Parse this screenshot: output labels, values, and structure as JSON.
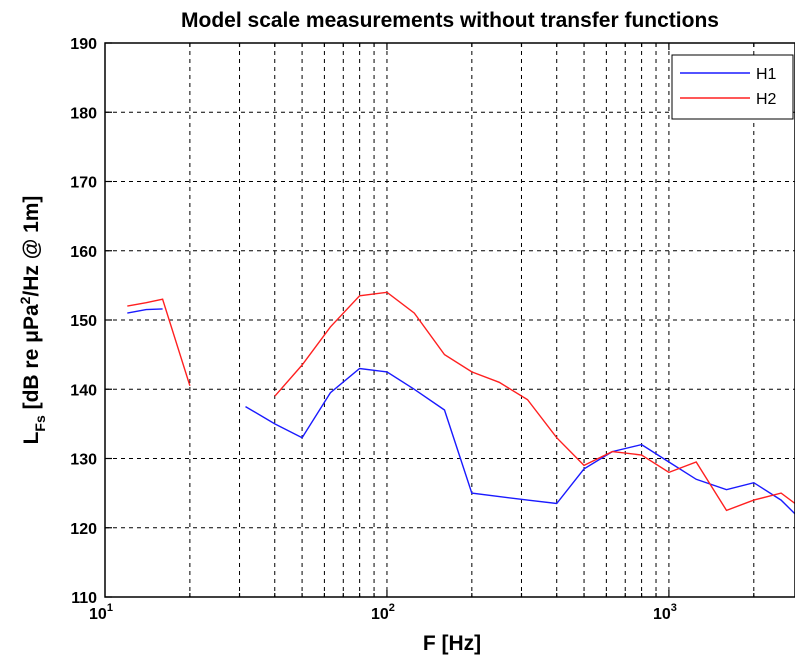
{
  "chart_data": {
    "type": "line",
    "title": "Model scale measurements without transfer functions",
    "xlabel": "F [Hz]",
    "ylabel": {
      "base": "L",
      "sub": "Fs",
      "rest1": " [dB re μPa",
      "sup": "2",
      "rest2": "/Hz @ 1m]"
    },
    "xscale": "log",
    "xlim": [
      10,
      2800
    ],
    "ylim": [
      110,
      190
    ],
    "yticks": [
      110,
      120,
      130,
      140,
      150,
      160,
      170,
      180,
      190
    ],
    "xticks": [
      {
        "value": 10,
        "base": "10",
        "exp": "1"
      },
      {
        "value": 100,
        "base": "10",
        "exp": "2"
      },
      {
        "value": 1000,
        "base": "10",
        "exp": "3"
      }
    ],
    "grid": true,
    "legend_position": "top-right",
    "series": [
      {
        "name": "H1",
        "color": "#1a1aff",
        "segments": [
          {
            "x": [
              12,
              14,
              16
            ],
            "y": [
              151,
              151.5,
              151.6
            ]
          },
          {
            "x": [
              31.5,
              40,
              50,
              63,
              80,
              100,
              125,
              160,
              200,
              250,
              315,
              400,
              500,
              630,
              800,
              1000,
              1250,
              1600,
              2000,
              2500,
              2800
            ],
            "y": [
              137.5,
              135,
              133,
              139.5,
              143,
              142.5,
              140,
              137,
              125,
              124.5,
              124,
              123.5,
              128.5,
              131,
              132,
              129.5,
              127,
              125.5,
              126.5,
              124,
              122
            ]
          }
        ]
      },
      {
        "name": "H2",
        "color": "#ff2020",
        "segments": [
          {
            "x": [
              12,
              14,
              16,
              20
            ],
            "y": [
              152,
              152.5,
              153,
              140.5
            ]
          },
          {
            "x": [
              40,
              50,
              63,
              80,
              100,
              125,
              160,
              200,
              250,
              315,
              400,
              500,
              630,
              800,
              1000,
              1250,
              1600,
              2000,
              2500,
              2800
            ],
            "y": [
              139,
              143.5,
              149,
              153.5,
              154,
              151,
              145,
              142.5,
              141,
              138.5,
              133,
              129,
              131,
              130.5,
              128,
              129.5,
              122.5,
              124,
              125,
              123.5
            ]
          }
        ]
      }
    ]
  }
}
